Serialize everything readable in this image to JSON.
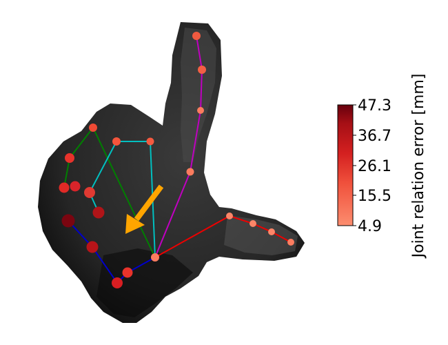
{
  "colorbar": {
    "label": "Joint relation error [mm]",
    "ticks": [
      "47.3",
      "36.7",
      "26.1",
      "15.5",
      "4.9"
    ],
    "min": 4.9,
    "max": 47.3,
    "colors": {
      "low": "#fc8d6f",
      "mid": "#e8392f",
      "high": "#67000d"
    }
  },
  "skeleton": {
    "palm_color": "#ff0000",
    "finger_colors": {
      "thumb": "#0000cc",
      "index": "#008000",
      "middle": "#00c0c0",
      "ring": "#c000c0",
      "pinky": "#ee0000"
    }
  },
  "arrow": {
    "color": "#ffa500",
    "icon": "arrow-down-left"
  }
}
